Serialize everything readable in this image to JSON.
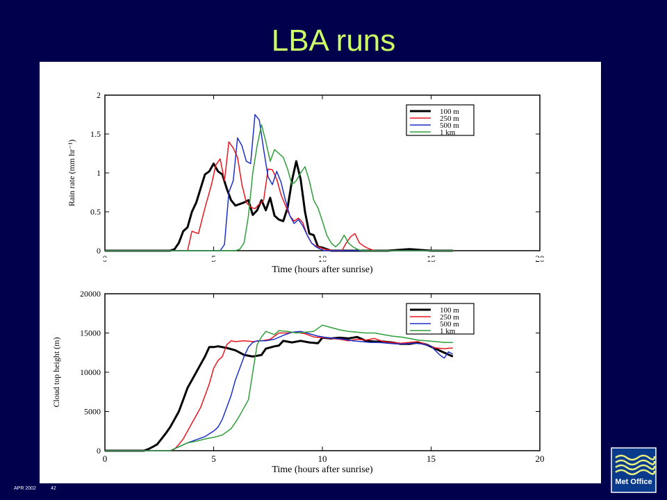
{
  "slide": {
    "title": "LBA runs",
    "footer_date": "APR 2002",
    "footer_page": "42",
    "logo_text": "Met Office",
    "background": "#00004d",
    "title_color": "#ccff66"
  },
  "chart_data": [
    {
      "type": "line",
      "ylabel": "Rain rate (mm hr⁻¹)",
      "xlabel": "Time (hours after sunrise)",
      "xlim": [
        0,
        20
      ],
      "ylim": [
        0,
        2
      ],
      "xticks": [
        0,
        5,
        10,
        15,
        20
      ],
      "yticks": [
        0,
        0.5,
        1,
        1.5,
        2
      ],
      "ytick_labels": [
        "0",
        "0.5",
        "1",
        "1.5",
        "2"
      ],
      "legend_position": "top-right",
      "series": [
        {
          "name": "100 m",
          "color": "#000000",
          "width": 3,
          "x": [
            0,
            3.0,
            3.2,
            3.4,
            3.6,
            3.8,
            4.0,
            4.2,
            4.4,
            4.6,
            4.8,
            5.0,
            5.2,
            5.4,
            5.6,
            5.8,
            6.0,
            6.2,
            6.4,
            6.6,
            6.8,
            7.0,
            7.2,
            7.4,
            7.6,
            7.8,
            8.0,
            8.2,
            8.4,
            8.6,
            8.8,
            9.0,
            9.2,
            9.4,
            9.6,
            9.8,
            10.0,
            10.2,
            10.4,
            10.6,
            10.8,
            11.0,
            11.2,
            11.4,
            11.6,
            11.8,
            12.0,
            12.5,
            13.0,
            14.0,
            15.0,
            16.0
          ],
          "y": [
            0,
            0,
            0.02,
            0.1,
            0.25,
            0.3,
            0.5,
            0.62,
            0.8,
            0.98,
            1.02,
            1.12,
            1.02,
            0.98,
            0.8,
            0.65,
            0.58,
            0.6,
            0.62,
            0.65,
            0.46,
            0.52,
            0.65,
            0.52,
            0.68,
            0.45,
            0.4,
            0.38,
            0.55,
            0.9,
            1.15,
            0.92,
            0.5,
            0.22,
            0.2,
            0.05,
            0.04,
            0.02,
            0,
            0,
            0,
            0,
            0,
            0,
            0,
            0,
            0,
            0,
            0,
            0.02,
            0,
            0
          ]
        },
        {
          "name": "250 m",
          "color": "#e8141e",
          "width": 1.5,
          "x": [
            0,
            3.8,
            4.0,
            4.3,
            4.6,
            4.9,
            5.1,
            5.3,
            5.5,
            5.7,
            5.9,
            6.1,
            6.3,
            6.5,
            6.7,
            6.9,
            7.1,
            7.3,
            7.5,
            7.7,
            7.9,
            8.1,
            8.3,
            8.5,
            8.7,
            8.9,
            9.1,
            9.3,
            9.5,
            9.7,
            9.9,
            10.1,
            10.3,
            10.5,
            10.7,
            10.9,
            11.1,
            11.3,
            11.5,
            11.7,
            11.9,
            12.1,
            12.3,
            12.5,
            13.0,
            14.0,
            15.0,
            16.0
          ],
          "y": [
            0,
            0,
            0.25,
            0.22,
            0.55,
            0.85,
            1.1,
            1.18,
            0.9,
            1.4,
            1.32,
            1.2,
            0.85,
            0.62,
            0.56,
            0.54,
            0.6,
            0.65,
            1.05,
            1.04,
            0.92,
            0.72,
            0.58,
            0.45,
            0.38,
            0.42,
            0.36,
            0.2,
            0.1,
            0.06,
            0.04,
            0.02,
            0.01,
            0,
            0,
            0,
            0.1,
            0.18,
            0.22,
            0.1,
            0.06,
            0.03,
            0.01,
            0,
            0,
            0,
            0,
            0
          ]
        },
        {
          "name": "500 m",
          "color": "#1c2fc8",
          "width": 1.5,
          "x": [
            0,
            5.3,
            5.5,
            5.7,
            5.9,
            6.1,
            6.3,
            6.5,
            6.7,
            6.9,
            7.1,
            7.3,
            7.5,
            7.7,
            7.9,
            8.1,
            8.3,
            8.5,
            8.7,
            8.9,
            9.1,
            9.3,
            9.5,
            9.7,
            9.9,
            10.1,
            10.3,
            10.5,
            11.0,
            12.0,
            13.0,
            14.0,
            15.0,
            16.0
          ],
          "y": [
            0,
            0,
            0.08,
            0.75,
            0.9,
            1.45,
            1.35,
            1.15,
            1.12,
            1.75,
            1.68,
            1.3,
            0.95,
            0.85,
            1.02,
            0.88,
            0.65,
            0.45,
            0.35,
            0.4,
            0.32,
            0.2,
            0.1,
            0.05,
            0.02,
            0,
            0,
            0,
            0,
            0,
            0,
            0,
            0,
            0
          ]
        },
        {
          "name": "1 km",
          "color": "#2e9e3a",
          "width": 1.5,
          "x": [
            0,
            6.0,
            6.2,
            6.4,
            6.6,
            6.8,
            7.0,
            7.2,
            7.4,
            7.6,
            7.8,
            8.0,
            8.2,
            8.4,
            8.6,
            8.8,
            9.0,
            9.2,
            9.4,
            9.6,
            9.8,
            10.0,
            10.2,
            10.4,
            10.6,
            10.8,
            11.0,
            11.2,
            11.4,
            11.6,
            11.8,
            12.0,
            12.2,
            12.4,
            12.6,
            13.0,
            14.0,
            15.0,
            16.0
          ],
          "y": [
            0,
            0,
            0.02,
            0.1,
            0.45,
            1.0,
            1.35,
            1.62,
            1.4,
            1.15,
            1.3,
            1.25,
            1.2,
            1.05,
            0.85,
            0.9,
            1.0,
            1.08,
            0.9,
            0.65,
            0.55,
            0.38,
            0.2,
            0.1,
            0.05,
            0.1,
            0.2,
            0.1,
            0.05,
            0.02,
            0,
            0,
            0,
            0,
            0,
            0,
            0,
            0,
            0
          ]
        }
      ]
    },
    {
      "type": "line",
      "ylabel": "Cloud top height (m)",
      "xlabel": "Time (hours after sunrise)",
      "xlim": [
        0,
        20
      ],
      "ylim": [
        0,
        20000
      ],
      "xticks": [
        0,
        5,
        10,
        15,
        20
      ],
      "yticks": [
        0,
        5000,
        10000,
        15000,
        20000
      ],
      "ytick_labels": [
        "0",
        "5000",
        "10000",
        "15000",
        "20000"
      ],
      "legend_position": "top-right",
      "series": [
        {
          "name": "100 m",
          "color": "#000000",
          "width": 3,
          "x": [
            0,
            1.8,
            2.0,
            2.2,
            2.4,
            2.6,
            2.8,
            3.0,
            3.2,
            3.4,
            3.6,
            3.8,
            4.0,
            4.2,
            4.4,
            4.6,
            4.8,
            5.0,
            5.2,
            5.6,
            6.0,
            6.4,
            6.8,
            7.0,
            7.2,
            7.4,
            7.8,
            8.0,
            8.2,
            8.6,
            9.0,
            9.4,
            9.8,
            10.0,
            10.4,
            10.8,
            11.2,
            11.6,
            12.0,
            12.4,
            12.8,
            13.2,
            13.6,
            14.0,
            14.4,
            14.8,
            15.2,
            15.6,
            16.0
          ],
          "y": [
            0,
            0,
            200,
            500,
            800,
            1500,
            2200,
            3000,
            4000,
            5000,
            6500,
            8000,
            9000,
            10000,
            11000,
            12000,
            13200,
            13200,
            13300,
            13100,
            12800,
            12200,
            12000,
            12100,
            12200,
            13000,
            13300,
            13400,
            14000,
            13800,
            14000,
            13800,
            13700,
            14400,
            14300,
            14400,
            14300,
            14500,
            14000,
            13900,
            13900,
            13800,
            13600,
            13600,
            13800,
            13500,
            13000,
            12500,
            12000
          ]
        },
        {
          "name": "250 m",
          "color": "#e8141e",
          "width": 1.5,
          "x": [
            0,
            3.0,
            3.2,
            3.4,
            3.6,
            3.8,
            4.0,
            4.2,
            4.4,
            4.6,
            4.8,
            5.0,
            5.2,
            5.4,
            5.6,
            5.8,
            6.0,
            6.4,
            6.8,
            7.2,
            7.6,
            8.0,
            8.4,
            8.8,
            9.2,
            9.6,
            10.0,
            10.4,
            10.8,
            11.2,
            11.6,
            12.0,
            12.4,
            12.8,
            13.2,
            13.6,
            14.0,
            14.4,
            14.8,
            15.2,
            15.6,
            16.0
          ],
          "y": [
            0,
            0,
            200,
            800,
            1500,
            2500,
            3500,
            4500,
            5500,
            7000,
            8500,
            10500,
            11500,
            12000,
            13500,
            14000,
            13900,
            14000,
            13900,
            14000,
            14200,
            15000,
            15000,
            15100,
            14900,
            14500,
            14400,
            14300,
            14200,
            14000,
            14200,
            14100,
            14300,
            13900,
            13800,
            13700,
            13800,
            13900,
            13500,
            13100,
            13000,
            13100
          ]
        },
        {
          "name": "500 m",
          "color": "#1c2fc8",
          "width": 1.5,
          "x": [
            0,
            3.0,
            3.4,
            3.8,
            4.2,
            4.6,
            5.0,
            5.2,
            5.4,
            5.6,
            5.8,
            6.0,
            6.2,
            6.4,
            6.6,
            6.8,
            7.0,
            7.4,
            7.8,
            8.2,
            8.6,
            9.0,
            9.4,
            9.8,
            10.2,
            10.6,
            11.0,
            11.4,
            11.8,
            12.2,
            12.6,
            13.0,
            13.4,
            13.8,
            14.2,
            14.6,
            15.0,
            15.4,
            15.6,
            15.8,
            16.0
          ],
          "y": [
            0,
            0,
            500,
            1000,
            1400,
            1800,
            2500,
            3000,
            4000,
            5500,
            7000,
            9000,
            10500,
            12000,
            13200,
            13800,
            14000,
            14000,
            14200,
            14700,
            15100,
            15200,
            14900,
            14600,
            14400,
            14300,
            14200,
            14000,
            13900,
            13800,
            13800,
            13700,
            13600,
            13600,
            13700,
            13600,
            13300,
            12200,
            11800,
            12600,
            12300
          ]
        },
        {
          "name": "1 km",
          "color": "#2e9e3a",
          "width": 1.5,
          "x": [
            0,
            3.0,
            3.4,
            3.8,
            4.2,
            4.6,
            5.0,
            5.4,
            5.8,
            6.0,
            6.2,
            6.4,
            6.6,
            6.8,
            7.0,
            7.2,
            7.4,
            7.8,
            8.0,
            8.4,
            8.8,
            9.2,
            9.6,
            10.0,
            10.4,
            10.8,
            11.2,
            11.6,
            12.0,
            12.4,
            12.8,
            13.2,
            13.6,
            14.0,
            14.4,
            14.8,
            15.2,
            15.6,
            16.0
          ],
          "y": [
            0,
            0,
            500,
            1000,
            1200,
            1500,
            1700,
            2000,
            2800,
            3600,
            4500,
            5500,
            6500,
            10000,
            13500,
            14500,
            15200,
            14800,
            15300,
            15200,
            15000,
            15100,
            15200,
            16000,
            15700,
            15400,
            15200,
            15100,
            15000,
            15000,
            14800,
            14600,
            14500,
            14300,
            14100,
            14000,
            13900,
            13800,
            13800
          ]
        }
      ]
    }
  ]
}
